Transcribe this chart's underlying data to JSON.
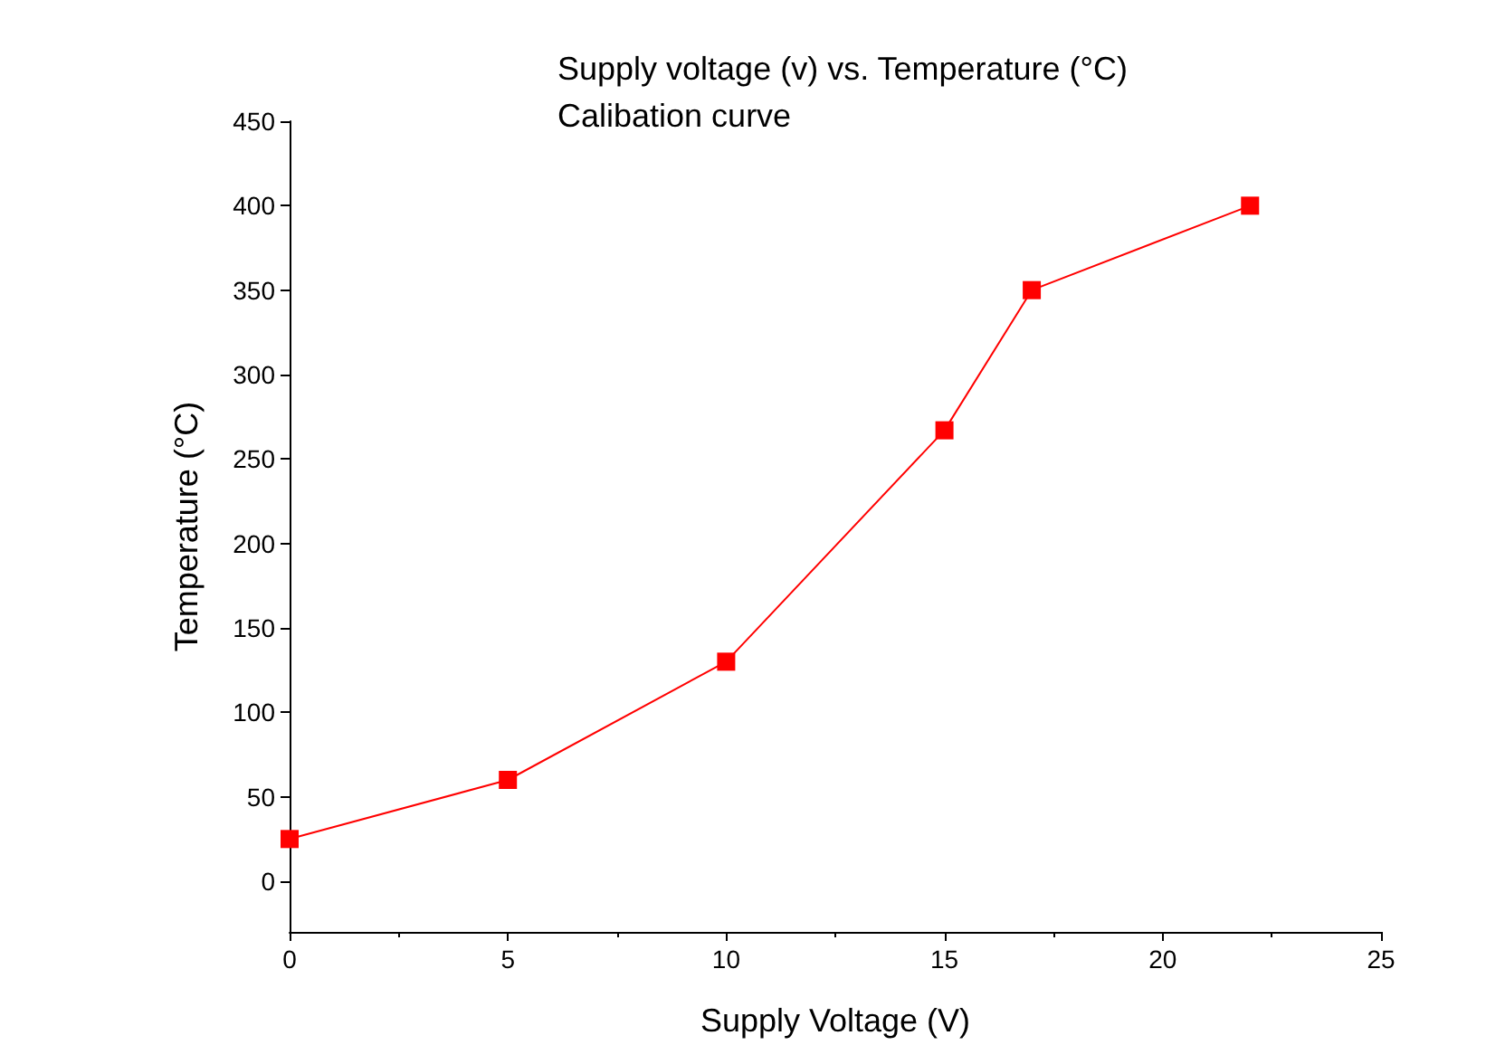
{
  "chart_data": {
    "type": "line",
    "title": "Supply voltage (v) vs. Temperature (°C)",
    "subtitle": "Calibation curve",
    "xlabel": "Supply Voltage (V)",
    "ylabel": "Temperature (°C)",
    "x": [
      0,
      5,
      10,
      15,
      17,
      22
    ],
    "series": [
      {
        "color": "#ff0000",
        "values": [
          25,
          60,
          130,
          267,
          350,
          400
        ]
      }
    ],
    "xlim": [
      0,
      25
    ],
    "xticks": [
      0,
      5,
      10,
      15,
      20,
      25
    ],
    "ylim": [
      -30,
      450
    ],
    "yticks": [
      0,
      50,
      100,
      150,
      200,
      250,
      300,
      350,
      400,
      450
    ],
    "marker": "square",
    "line_style": "solid",
    "grid": false
  }
}
